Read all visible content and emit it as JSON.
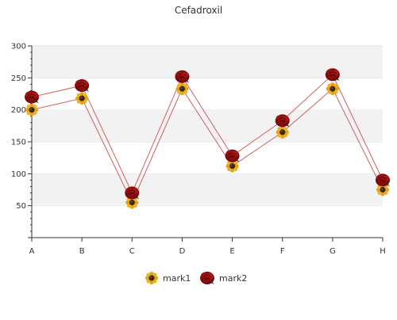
{
  "chart_data": {
    "type": "line",
    "title": "Cefadroxil",
    "xlabel": "",
    "ylabel": "",
    "categories": [
      "A",
      "B",
      "C",
      "D",
      "E",
      "F",
      "G",
      "H"
    ],
    "ylim": [
      0,
      300
    ],
    "yticks": [
      50,
      100,
      150,
      200,
      250,
      300
    ],
    "grid": "horizontal bands",
    "legend_position": "bottom",
    "series": [
      {
        "name": "mark1",
        "values": [
          200,
          218,
          55,
          233,
          112,
          165,
          233,
          75
        ],
        "marker": "sunflower-icon"
      },
      {
        "name": "mark2",
        "values": [
          220,
          238,
          70,
          252,
          128,
          183,
          255,
          90
        ],
        "marker": "rose-icon"
      }
    ]
  },
  "colors": {
    "line": "#d06060",
    "band": "#f2f2f2",
    "grid": "#dddddd",
    "axis": "#333333",
    "sunflower_petal": "#e8a21a",
    "sunflower_center": "#3a2a10",
    "rose_outer": "#7a0a0a",
    "rose_inner": "#b31515"
  }
}
